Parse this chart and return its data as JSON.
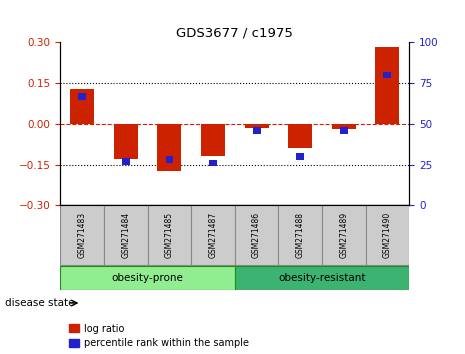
{
  "title": "GDS3677 / c1975",
  "samples": [
    "GSM271483",
    "GSM271484",
    "GSM271485",
    "GSM271487",
    "GSM271486",
    "GSM271488",
    "GSM271489",
    "GSM271490"
  ],
  "log_ratio": [
    0.13,
    -0.13,
    -0.175,
    -0.12,
    -0.015,
    -0.09,
    -0.02,
    0.285
  ],
  "percentile_rank": [
    67,
    27,
    28,
    26,
    46,
    30,
    46,
    80
  ],
  "ylim_left": [
    -0.3,
    0.3
  ],
  "ylim_right": [
    0,
    100
  ],
  "yticks_left": [
    -0.3,
    -0.15,
    0,
    0.15,
    0.3
  ],
  "yticks_right": [
    0,
    25,
    50,
    75,
    100
  ],
  "groups": [
    {
      "label": "obesity-prone",
      "start": 0,
      "end": 4,
      "color": "#90EE90"
    },
    {
      "label": "obesity-resistant",
      "start": 4,
      "end": 8,
      "color": "#3CB371"
    }
  ],
  "disease_state_label": "disease state",
  "bar_color_red": "#CC2200",
  "bar_color_blue": "#2222CC",
  "zero_line_color": "#CC2200",
  "hline_color": "#000000",
  "legend_red": "log ratio",
  "legend_blue": "percentile rank within the sample",
  "bar_width": 0.55,
  "blue_bar_width": 0.18,
  "blue_bar_height": 0.025
}
